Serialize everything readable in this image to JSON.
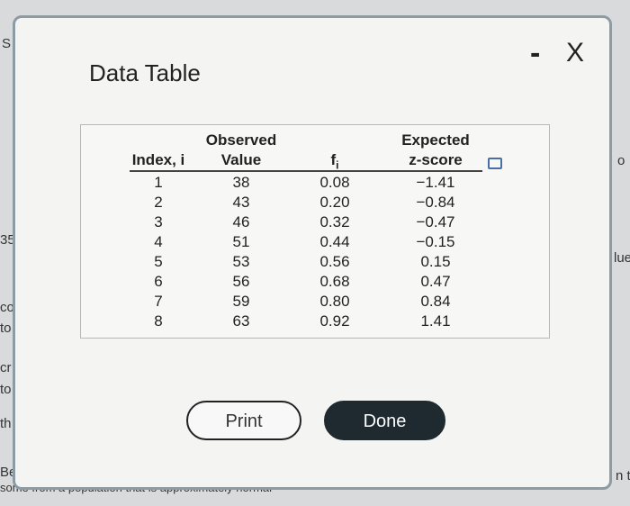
{
  "background_fragments": [
    "S",
    "35",
    "co",
    "to",
    "cr",
    "to",
    "th",
    "Be",
    "some from a population that is approximately normal",
    "o",
    "lue",
    "n t"
  ],
  "dialog": {
    "title": "Data Table",
    "minimize": "-",
    "close": "X"
  },
  "table": {
    "headers": [
      {
        "lines": [
          "Index, i"
        ]
      },
      {
        "lines": [
          "Observed",
          "Value"
        ]
      },
      {
        "lines": [
          "f"
        ],
        "subscript": "i"
      },
      {
        "lines": [
          "Expected",
          "z-score"
        ]
      }
    ],
    "rows": [
      [
        "1",
        "38",
        "0.08",
        "−1.41"
      ],
      [
        "2",
        "43",
        "0.20",
        "−0.84"
      ],
      [
        "3",
        "46",
        "0.32",
        "−0.47"
      ],
      [
        "4",
        "51",
        "0.44",
        "−0.15"
      ],
      [
        "5",
        "53",
        "0.56",
        "0.15"
      ],
      [
        "6",
        "56",
        "0.68",
        "0.47"
      ],
      [
        "7",
        "59",
        "0.80",
        "0.84"
      ],
      [
        "8",
        "63",
        "0.92",
        "1.41"
      ]
    ]
  },
  "buttons": [
    "Print",
    "Done"
  ]
}
